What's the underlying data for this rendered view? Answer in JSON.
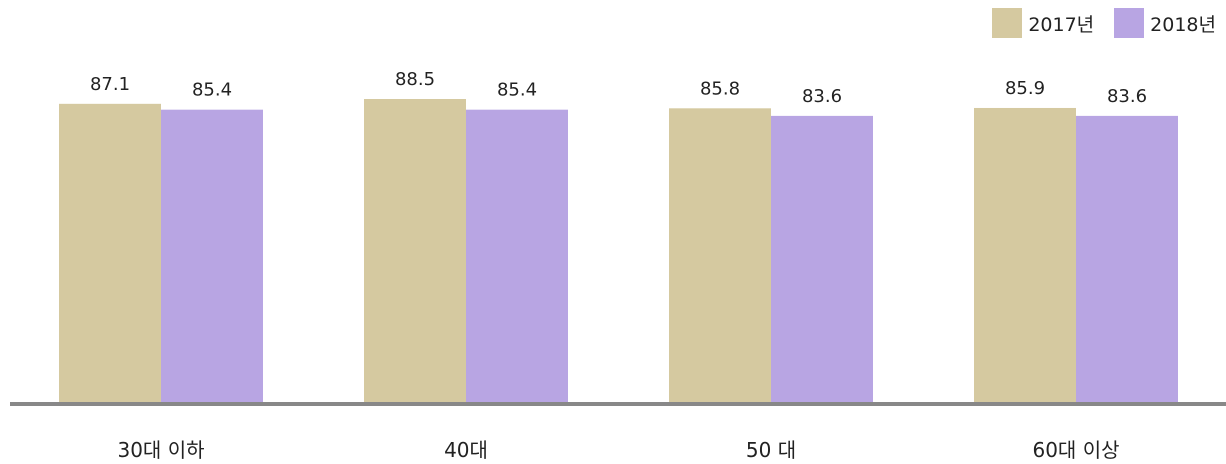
{
  "chart_data": {
    "type": "bar",
    "categories": [
      "30대 이하",
      "40대",
      "50 대",
      "60대 이상"
    ],
    "series": [
      {
        "name": "2017년",
        "values": [
          87.1,
          88.5,
          85.8,
          85.9
        ],
        "color": "#d5c9a0"
      },
      {
        "name": "2018년",
        "values": [
          85.4,
          85.4,
          83.6,
          83.6
        ],
        "color": "#b8a5e3"
      }
    ],
    "title": "",
    "xlabel": "",
    "ylabel": "",
    "ylim": [
      0,
      100
    ],
    "grid": false,
    "legend": "top-right",
    "axis_color": "#888888"
  }
}
